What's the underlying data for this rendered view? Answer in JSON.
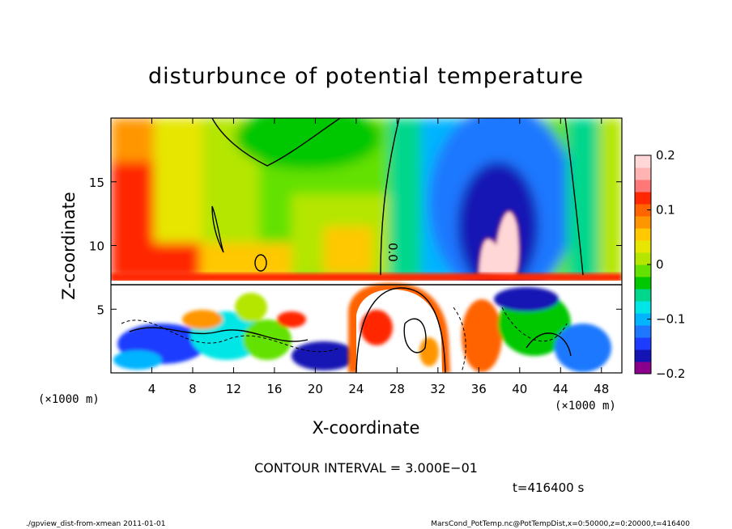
{
  "chart_data": {
    "type": "heatmap",
    "title": "disturbunce of potential temperature",
    "xlabel": "X-coordinate",
    "ylabel": "Z-coordinate",
    "x_unit": "(×1000 m)",
    "xlim": [
      0,
      50
    ],
    "ylim": [
      0,
      20
    ],
    "xticks": [
      4,
      8,
      12,
      16,
      20,
      24,
      28,
      32,
      36,
      40,
      44,
      48
    ],
    "yticks": [
      5,
      10,
      15
    ],
    "colorbar": {
      "min": -0.2,
      "max": 0.2,
      "tick_values": [
        0.2,
        0.1,
        0,
        -0.1,
        -0.2
      ],
      "tick_labels": [
        "0.2",
        "0.1",
        "0",
        "−0.1",
        "−0.2"
      ],
      "colors": [
        "#8b008b",
        "#1414b4",
        "#1e3cff",
        "#1e78ff",
        "#00b4ff",
        "#00e6e6",
        "#00d78c",
        "#00c800",
        "#64e100",
        "#b4e600",
        "#e6e600",
        "#ffc800",
        "#ff9600",
        "#ff6400",
        "#ff2800",
        "#ff7878",
        "#ffb4b4",
        "#ffd7d7"
      ]
    },
    "contour_interval_text": "CONTOUR INTERVAL = 3.000E−01",
    "contour_label": "0.0"
  },
  "time_label": "t=416400 s",
  "footer": {
    "left": "./gpview_dist-from-xmean  2011-01-01",
    "right": "MarsCond_PotTemp.nc@PotTempDist,x=0:50000,z=0:20000,t=416400"
  }
}
